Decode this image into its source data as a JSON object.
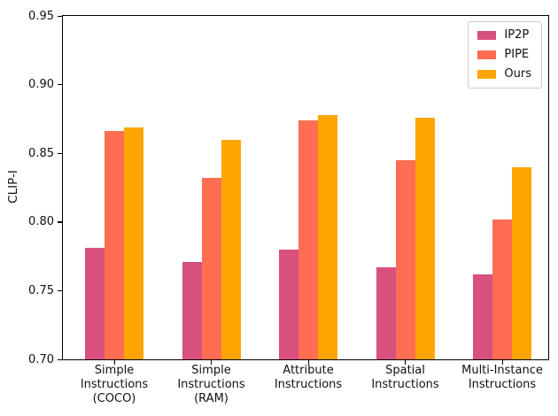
{
  "chart_data": {
    "type": "bar",
    "title": "",
    "xlabel": "",
    "ylabel": "CLIP-I",
    "ylim": [
      0.7,
      0.95
    ],
    "yticks": [
      0.7,
      0.75,
      0.8,
      0.85,
      0.9,
      0.95
    ],
    "ytick_labels": [
      "0.70",
      "0.75",
      "0.80",
      "0.85",
      "0.90",
      "0.95"
    ],
    "grid": false,
    "legend_position": "upper right",
    "categories": [
      "Simple\nInstructions\n(COCO)",
      "Simple\nInstructions\n(RAM)",
      "Attribute\nInstructions",
      "Spatial\nInstructions",
      "Multi-Instance\nInstructions"
    ],
    "series": [
      {
        "name": "IP2P",
        "color": "#D8507E",
        "values": [
          0.781,
          0.771,
          0.78,
          0.767,
          0.762
        ]
      },
      {
        "name": "PIPE",
        "color": "#FF6D52",
        "values": [
          0.866,
          0.832,
          0.874,
          0.845,
          0.802
        ]
      },
      {
        "name": "Ours",
        "color": "#FFA502",
        "values": [
          0.869,
          0.86,
          0.878,
          0.876,
          0.84
        ]
      }
    ]
  }
}
